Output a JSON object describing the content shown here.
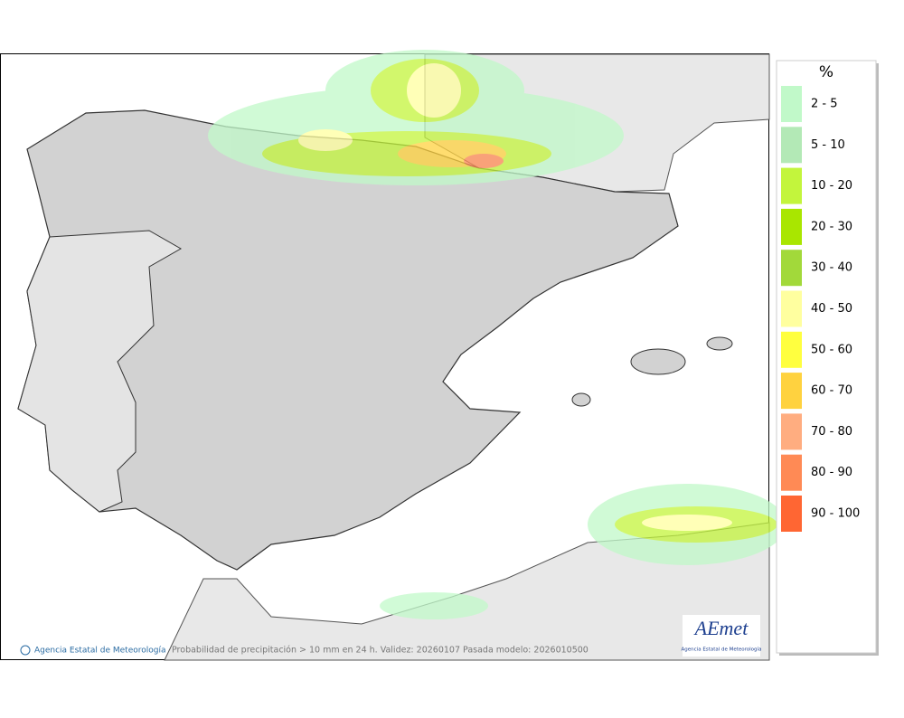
{
  "legend": {
    "title": "%",
    "items": [
      {
        "label": "2 - 5",
        "color": "#c1f9c9"
      },
      {
        "label": "5 - 10",
        "color": "#b3e9b6"
      },
      {
        "label": "10 - 20",
        "color": "#c3f53c"
      },
      {
        "label": "20 - 30",
        "color": "#a9e600"
      },
      {
        "label": "30 - 40",
        "color": "#a2d93a"
      },
      {
        "label": "40 - 50",
        "color": "#ffff9f"
      },
      {
        "label": "50 - 60",
        "color": "#ffff3f"
      },
      {
        "label": "60 - 70",
        "color": "#ffd23f"
      },
      {
        "label": "70 - 80",
        "color": "#ffad80"
      },
      {
        "label": "80 - 90",
        "color": "#ff8a55"
      },
      {
        "label": "90 - 100",
        "color": "#ff6633"
      }
    ]
  },
  "footer": {
    "credit": "Agencia Estatal de Meteorología",
    "caption": "Probabilidad de precipitación > 10 mm en 24 h. Validez: 20260107 Pasada modelo: 2026010500"
  },
  "logo": {
    "name": "AEmet",
    "subtitle": "Agencia Estatal de Meteorología"
  }
}
